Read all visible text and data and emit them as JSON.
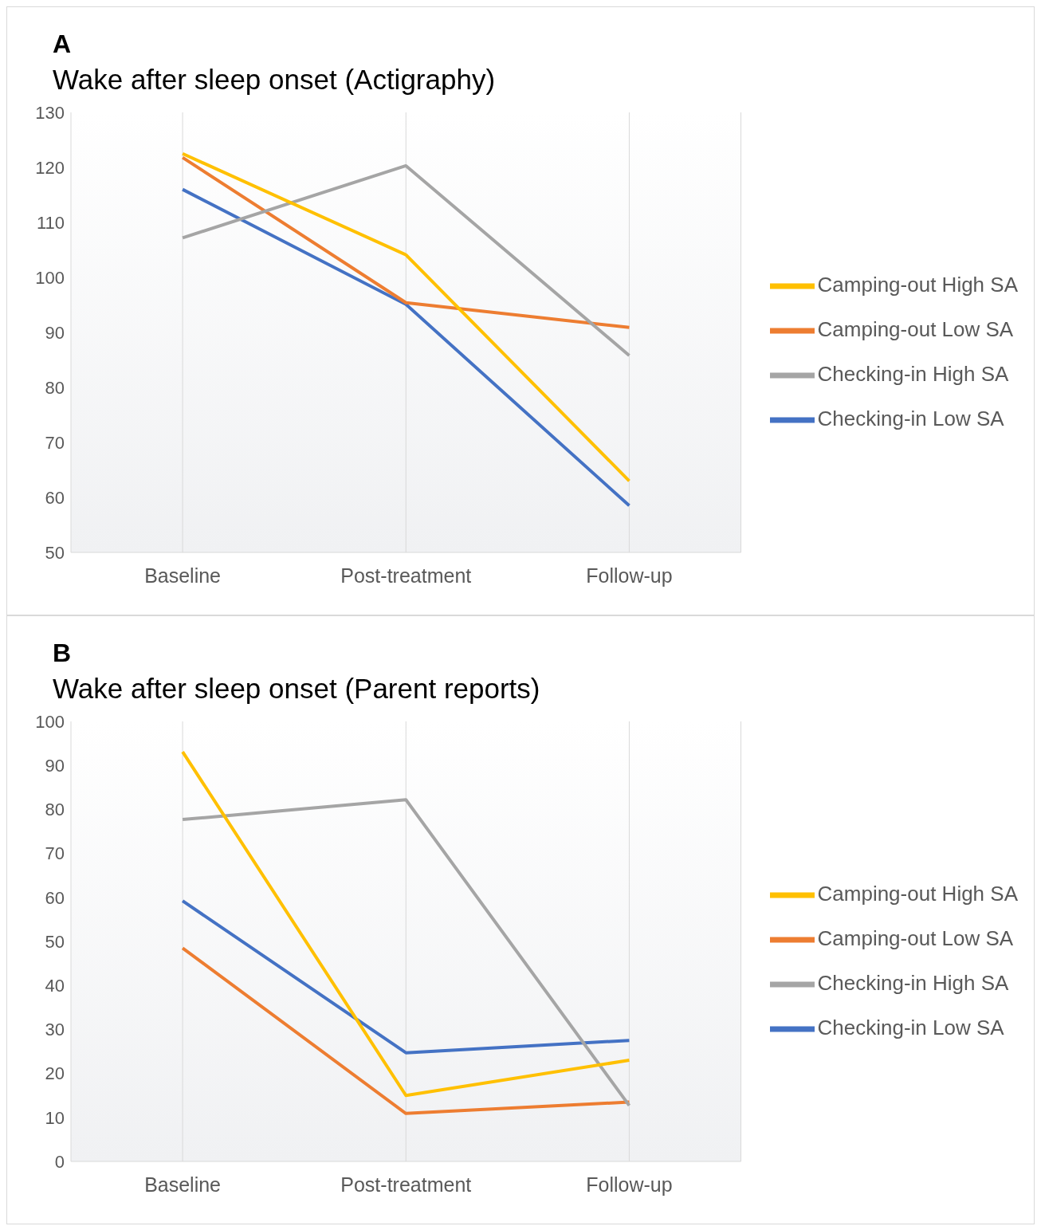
{
  "chart_data": [
    {
      "type": "line",
      "title": "A",
      "subtitle": "Wake after sleep onset (Actigraphy)",
      "categories": [
        "Baseline",
        "Post-treatment",
        "Follow-up"
      ],
      "ylim": [
        50,
        130
      ],
      "yticks": [
        50,
        60,
        70,
        80,
        90,
        100,
        110,
        120,
        130
      ],
      "grid": "x",
      "legend": "right",
      "series": [
        {
          "name": "Checking-in Low SA",
          "color": "#4472c4",
          "values": [
            116,
            95.1,
            58.5
          ]
        },
        {
          "name": "Camping-out Low SA",
          "color": "#ed7d31",
          "values": [
            121.8,
            95.4,
            90.9
          ]
        },
        {
          "name": "Checking-in High SA",
          "color": "#a5a5a5",
          "values": [
            107.2,
            120.3,
            85.8
          ]
        },
        {
          "name": "Camping-out High SA",
          "color": "#ffc000",
          "values": [
            122.5,
            104.1,
            63
          ]
        }
      ]
    },
    {
      "type": "line",
      "title": "B",
      "subtitle": "Wake after sleep onset (Parent reports)",
      "categories": [
        "Baseline",
        "Post-treatment",
        "Follow-up"
      ],
      "ylim": [
        0,
        100
      ],
      "yticks": [
        0,
        10,
        20,
        30,
        40,
        50,
        60,
        70,
        80,
        90,
        100
      ],
      "grid": "x",
      "legend": "right",
      "series": [
        {
          "name": "Checking-in Low SA",
          "color": "#4472c4",
          "values": [
            59.2,
            24.7,
            27.5
          ]
        },
        {
          "name": "Camping-out Low SA",
          "color": "#ed7d31",
          "values": [
            48.5,
            10.9,
            13.5
          ]
        },
        {
          "name": "Checking-in High SA",
          "color": "#a5a5a5",
          "values": [
            77.7,
            82.2,
            12.7
          ]
        },
        {
          "name": "Camping-out High SA",
          "color": "#ffc000",
          "values": [
            93.1,
            15,
            23
          ]
        }
      ]
    }
  ]
}
